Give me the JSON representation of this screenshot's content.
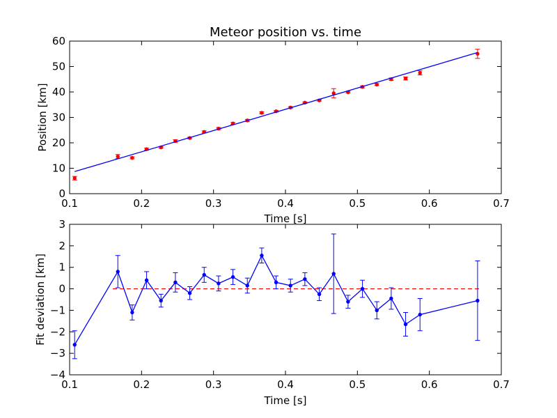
{
  "chart_data": [
    {
      "type": "scatter",
      "title": "Meteor position vs. time",
      "xlabel": "Time [s]",
      "ylabel": "Position [km]",
      "xlim": [
        0.1,
        0.7
      ],
      "ylim": [
        0,
        60
      ],
      "xticks": [
        "0.1",
        "0.2",
        "0.3",
        "0.4",
        "0.5",
        "0.6",
        "0.7"
      ],
      "yticks": [
        "0",
        "10",
        "20",
        "30",
        "40",
        "50",
        "60"
      ],
      "grid": false,
      "series": [
        {
          "marker": "point",
          "color": "#ff0000",
          "x": [
            0.107,
            0.167,
            0.187,
            0.207,
            0.227,
            0.247,
            0.267,
            0.287,
            0.307,
            0.327,
            0.347,
            0.367,
            0.387,
            0.407,
            0.427,
            0.447,
            0.467,
            0.487,
            0.507,
            0.527,
            0.547,
            0.567,
            0.587,
            0.667
          ],
          "y": [
            6.1,
            14.6,
            14.1,
            17.5,
            18.2,
            20.7,
            21.9,
            24.3,
            25.6,
            27.6,
            28.8,
            31.8,
            32.4,
            33.9,
            35.8,
            36.7,
            39.5,
            39.9,
            42.0,
            42.9,
            45.0,
            45.3,
            47.5,
            55.0
          ],
          "yerr": [
            0.7,
            0.8,
            0.4,
            0.4,
            0.3,
            0.5,
            0.3,
            0.4,
            0.4,
            0.4,
            0.4,
            0.4,
            0.3,
            0.3,
            0.3,
            0.3,
            1.8,
            0.3,
            0.4,
            0.4,
            0.5,
            0.6,
            0.8,
            1.8
          ]
        },
        {
          "line": "solid",
          "color": "#0000ff",
          "x": [
            0.107,
            0.667
          ],
          "y": [
            8.7,
            55.5
          ]
        }
      ]
    },
    {
      "type": "line",
      "title": "",
      "xlabel": "Time [s]",
      "ylabel": "Fit deviation [km]",
      "xlim": [
        0.1,
        0.7
      ],
      "ylim": [
        -4,
        3
      ],
      "xticks": [
        "0.1",
        "0.2",
        "0.3",
        "0.4",
        "0.5",
        "0.6",
        "0.7"
      ],
      "yticks": [
        "−4",
        "−3",
        "−2",
        "−1",
        "0",
        "1",
        "2",
        "3"
      ],
      "grid": false,
      "reference_line": {
        "y": 0,
        "style": "dashed",
        "color": "#ff0000"
      },
      "series": [
        {
          "color": "#0000ff",
          "x": [
            0.107,
            0.167,
            0.187,
            0.207,
            0.227,
            0.247,
            0.267,
            0.287,
            0.307,
            0.327,
            0.347,
            0.367,
            0.387,
            0.407,
            0.427,
            0.447,
            0.467,
            0.487,
            0.507,
            0.527,
            0.547,
            0.567,
            0.587,
            0.667
          ],
          "y": [
            -2.6,
            0.8,
            -1.1,
            0.4,
            -0.55,
            0.3,
            -0.2,
            0.65,
            0.25,
            0.55,
            0.15,
            1.55,
            0.3,
            0.15,
            0.45,
            -0.25,
            0.7,
            -0.6,
            0.0,
            -1.0,
            -0.45,
            -1.65,
            -1.2,
            -0.55
          ],
          "yerr": [
            0.65,
            0.75,
            0.35,
            0.4,
            0.3,
            0.45,
            0.3,
            0.35,
            0.35,
            0.35,
            0.35,
            0.35,
            0.3,
            0.3,
            0.3,
            0.3,
            1.85,
            0.3,
            0.4,
            0.4,
            0.5,
            0.55,
            0.75,
            1.85
          ]
        }
      ]
    }
  ]
}
